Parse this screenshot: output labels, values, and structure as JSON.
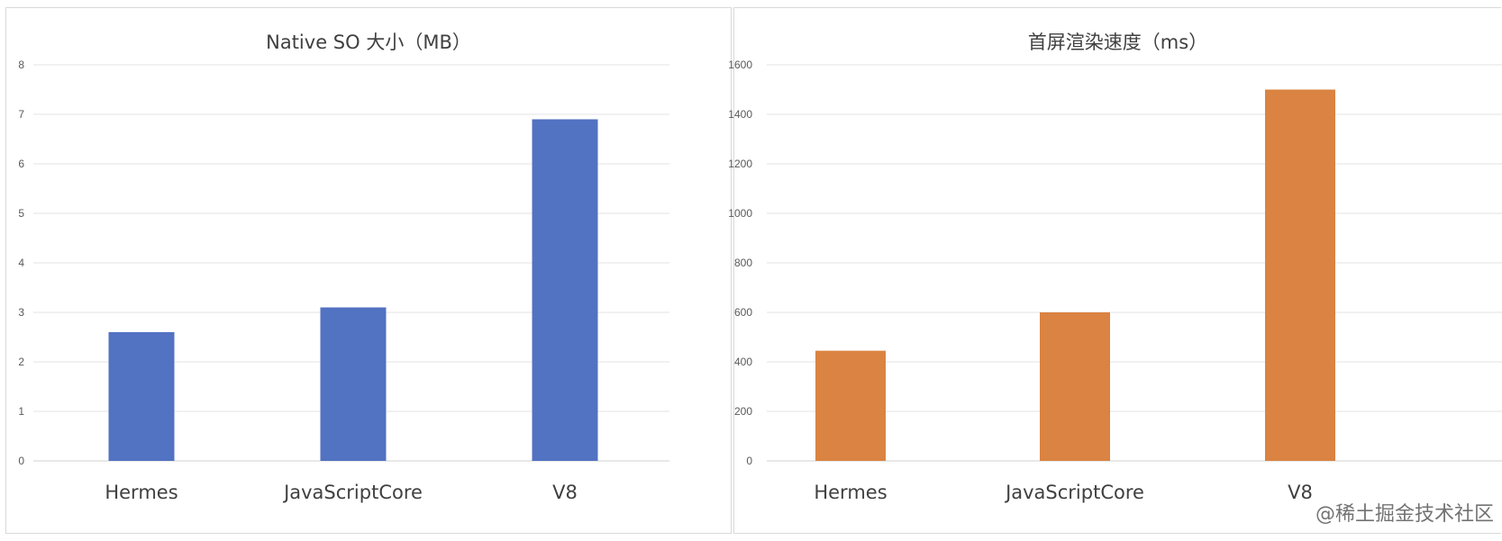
{
  "chart_data": [
    {
      "type": "bar",
      "title": "Native SO 大小（MB）",
      "categories": [
        "Hermes",
        "JavaScriptCore",
        "V8"
      ],
      "values": [
        2.6,
        3.1,
        6.9
      ],
      "ylim": [
        0,
        8
      ],
      "yticks": [
        "0",
        "1",
        "2",
        "3",
        "4",
        "5",
        "6",
        "7",
        "8"
      ],
      "grid": true,
      "legend": "none",
      "color": "#5272C2"
    },
    {
      "type": "bar",
      "title": "首屏渲染速度（ms）",
      "categories": [
        "Hermes",
        "JavaScriptCore",
        "V8"
      ],
      "values": [
        445,
        600,
        1500
      ],
      "ylim": [
        0,
        1600
      ],
      "yticks": [
        "0",
        "200",
        "400",
        "600",
        "800",
        "1000",
        "1200",
        "1400",
        "1600"
      ],
      "grid": true,
      "legend": "none",
      "color": "#DA8342"
    }
  ],
  "watermark": "@稀土掘金技术社区"
}
